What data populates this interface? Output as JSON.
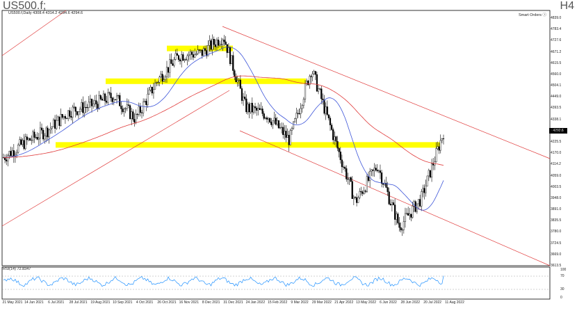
{
  "title_left": "US500.f;",
  "title_right": "H4",
  "chart_header": "US500.f,Daily  4308.4 4314.2 4294.6 4294.6",
  "smart_orders": "Smart Orders ⓘ",
  "rsi_label": "RSI(14) 72.8347",
  "current_price": "4292.6",
  "price_ticks": [
    "4839.0",
    "4783.4",
    "4727.6",
    "4671.2",
    "4615.5",
    "4560.0",
    "4504.1",
    "4449.0",
    "4393.5",
    "4338.1",
    "4281.0",
    "4225.5",
    "4170.0",
    "4114.2",
    "4059.0",
    "4003.5",
    "3948.0",
    "3891.0",
    "3835.5",
    "3780.0",
    "3724.5",
    "3669.0",
    "3613.5"
  ],
  "rsi_ticks": [
    "100",
    "70",
    "30",
    "0"
  ],
  "date_ticks": [
    "21 May 2021",
    "14 Jun 2021",
    "6 Jul 2021",
    "28 Jul 2021",
    "19 Aug 2021",
    "10 Sep 2021",
    "4 Oct 2021",
    "26 Oct 2021",
    "16 Nov 2021",
    "8 Dec 2021",
    "31 Dec 2021",
    "24 Jan 2022",
    "15 Feb 2022",
    "9 Mar 2022",
    "29 Mar 2022",
    "21 Apr 2022",
    "13 May 2022",
    "6 Jun 2022",
    "28 Jun 2022",
    "20 Jul 2022",
    "11 Aug 2022"
  ],
  "colors": {
    "candle": "#000000",
    "ma_fast": "#3d55d9",
    "ma_slow": "#e03a3a",
    "channel": "#e03a3a",
    "zone": "#ffff00",
    "rsi": "#1e90ff"
  },
  "chart_data": {
    "type": "line",
    "symbol": "US500.f",
    "timeframe": "Daily",
    "x": [
      "21 May 2021",
      "14 Jun 2021",
      "6 Jul 2021",
      "28 Jul 2021",
      "19 Aug 2021",
      "10 Sep 2021",
      "4 Oct 2021",
      "26 Oct 2021",
      "16 Nov 2021",
      "8 Dec 2021",
      "31 Dec 2021",
      "24 Jan 2022",
      "15 Feb 2022",
      "9 Mar 2022",
      "29 Mar 2022",
      "21 Apr 2022",
      "13 May 2022",
      "6 Jun 2022",
      "28 Jun 2022",
      "20 Jul 2022",
      "11 Aug 2022"
    ],
    "series": [
      {
        "values": [
          4160,
          4240,
          4300,
          4400,
          4430,
          4480,
          4360,
          4560,
          4690,
          4700,
          4790,
          4420,
          4380,
          4250,
          4620,
          4270,
          3930,
          4120,
          3800,
          3950,
          4290
        ]
      }
    ],
    "ylim": [
      3613.5,
      4839.0
    ],
    "support_zones": [
      4725,
      4555,
      4225
    ],
    "rsi": {
      "value": 72.8347,
      "levels": [
        70,
        30
      ],
      "ylim": [
        0,
        100
      ]
    }
  }
}
